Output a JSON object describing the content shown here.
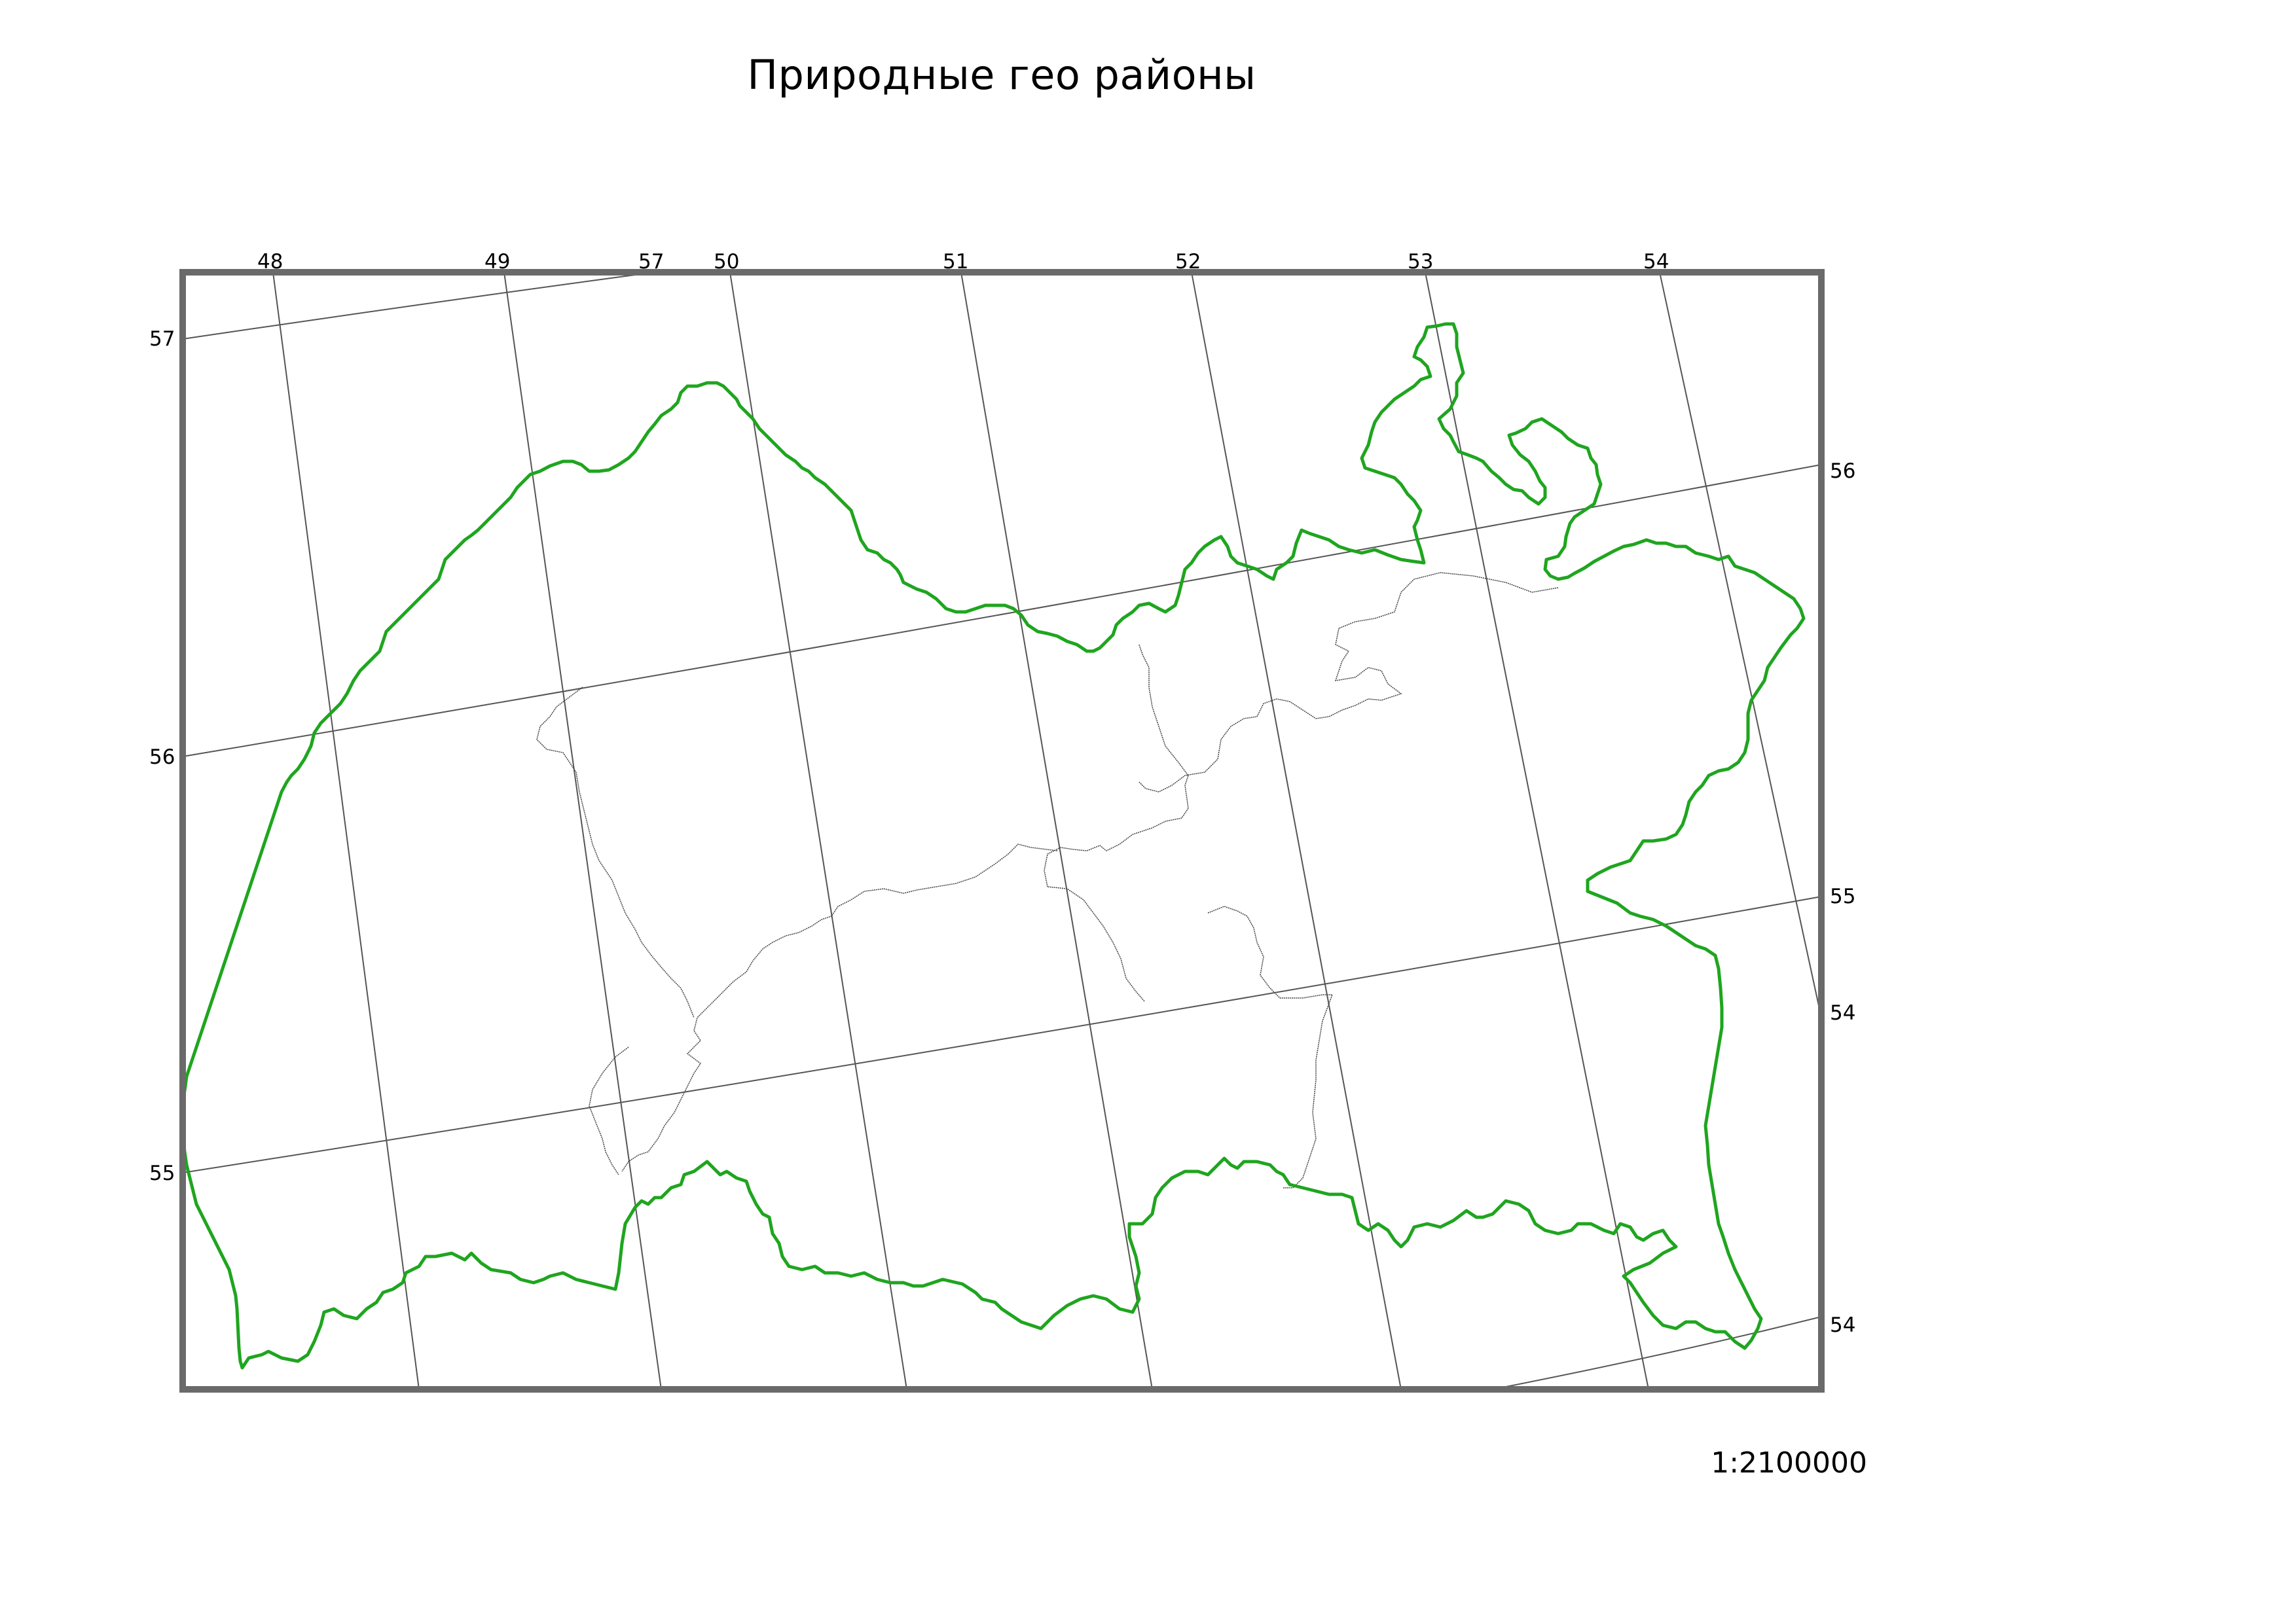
{
  "title": "Природные гео районы",
  "scale": "1:2100000",
  "colors": {
    "outline": "#1fa51f",
    "frame": "#6a6a6a",
    "grid": "#555555"
  },
  "graticule": {
    "longitude_labels_top": [
      "48",
      "49",
      "57",
      "50",
      "51",
      "52",
      "53",
      "54"
    ],
    "latitude_labels_left": [
      "57",
      "56",
      "55"
    ],
    "latitude_labels_right": [
      "56",
      "55",
      "54",
      "54"
    ]
  }
}
